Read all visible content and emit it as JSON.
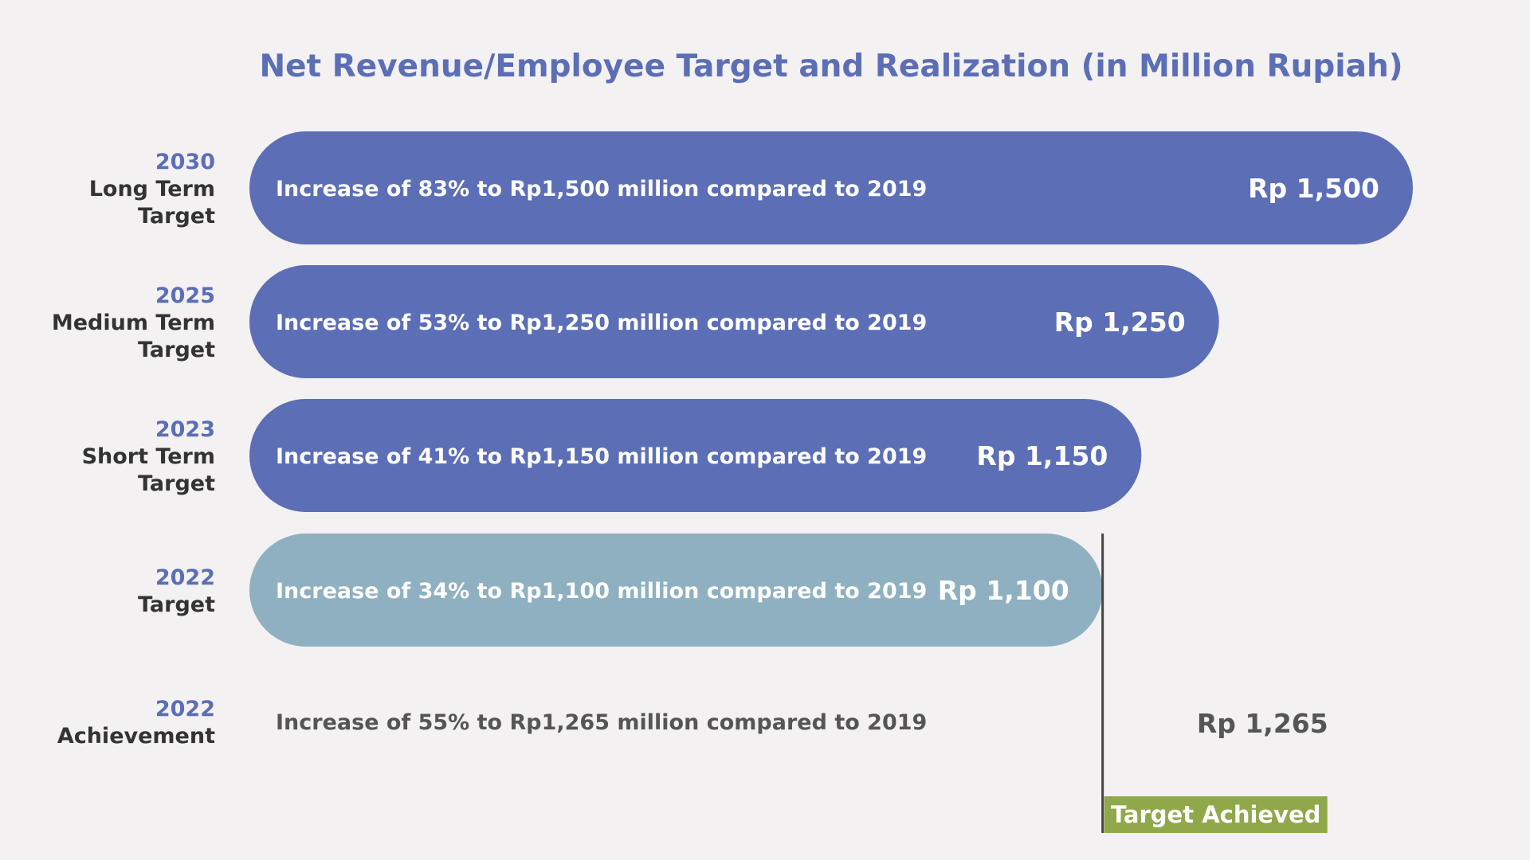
{
  "chart_data": {
    "type": "bar",
    "orientation": "horizontal",
    "title": "Net Revenue/Employee Target and Realization (in Million Rupiah)",
    "xlabel": "",
    "ylabel": "",
    "xlim": [
      0,
      1500
    ],
    "grid": false,
    "legend": "none",
    "categories": [
      {
        "year": "2030",
        "term": [
          "Long Term",
          "Target"
        ]
      },
      {
        "year": "2025",
        "term": [
          "Medium Term",
          "Target"
        ]
      },
      {
        "year": "2023",
        "term": [
          "Short Term",
          "Target"
        ]
      },
      {
        "year": "2022",
        "term": [
          "Target"
        ]
      },
      {
        "year": "2022",
        "term": [
          "Achievement"
        ]
      }
    ],
    "values": [
      1500,
      1250,
      1150,
      1100,
      1265
    ],
    "value_labels": [
      "Rp 1,500",
      "Rp 1,250",
      "Rp 1,150",
      "Rp 1,100",
      "Rp 1,265"
    ],
    "descriptions": [
      "Increase of 83% to Rp1,500 million compared to 2019",
      "Increase of 53% to Rp1,250 million compared to 2019",
      "Increase of 41% to Rp1,150 million compared to 2019",
      "Increase of 34% to Rp1,100 million compared to 2019",
      "Increase of 55% to Rp1,265 million compared to 2019"
    ],
    "bar_styles": [
      "target",
      "target",
      "target",
      "current-target",
      "achievement"
    ],
    "annotations": [
      {
        "type": "marker-line",
        "badge_text": "Target Achieved"
      }
    ],
    "colors": {
      "target": "#5b6eb6",
      "current_target": "#8fb0c0",
      "badge": "#8fa94a",
      "marker": "#444444"
    }
  }
}
